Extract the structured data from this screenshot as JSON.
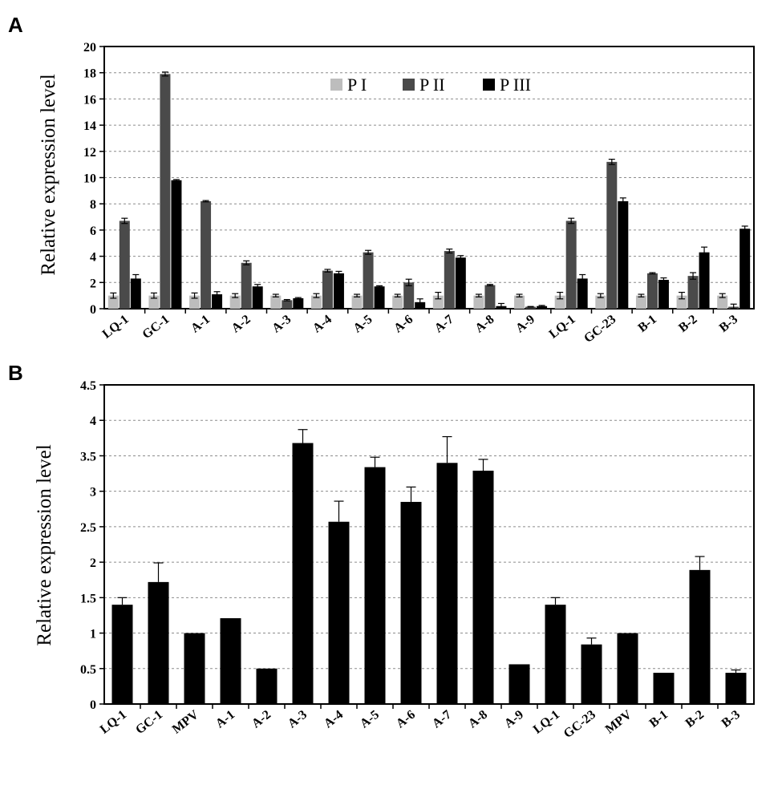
{
  "panels": {
    "a": {
      "letter": "A"
    },
    "b": {
      "letter": "B"
    }
  },
  "chart_data": [
    {
      "type": "bar",
      "panel": "A",
      "ylabel": "Relative expression level",
      "xlabel": "",
      "ylim": [
        0,
        20
      ],
      "yticks": [
        "0",
        "2",
        "4",
        "6",
        "8",
        "10",
        "12",
        "14",
        "16",
        "18",
        "20"
      ],
      "grid": "horizontal dashed",
      "legend_position": "top-center",
      "categories": [
        "LQ-1",
        "GC-1",
        "A-1",
        "A-2",
        "A-3",
        "A-4",
        "A-5",
        "A-6",
        "A-7",
        "A-8",
        "A-9",
        "LQ-1",
        "GC-23",
        "B-1",
        "B-2",
        "B-3"
      ],
      "series": [
        {
          "name": "P I",
          "color": "#bdbdbd",
          "values": [
            1,
            1,
            1,
            1,
            1,
            1,
            1,
            1,
            1,
            1,
            1,
            1,
            1,
            1,
            1,
            1
          ],
          "errors": [
            0.2,
            0.2,
            0.2,
            0.15,
            0.1,
            0.15,
            0.1,
            0.1,
            0.25,
            0.1,
            0.1,
            0.25,
            0.15,
            0.1,
            0.25,
            0.15
          ]
        },
        {
          "name": "P II",
          "color": "#4a4a4a",
          "values": [
            6.7,
            17.9,
            8.2,
            3.5,
            0.65,
            2.9,
            4.3,
            2.0,
            4.4,
            1.8,
            0.15,
            6.7,
            11.2,
            2.7,
            2.5,
            0.15
          ],
          "errors": [
            0.2,
            0.15,
            0.05,
            0.15,
            0.05,
            0.1,
            0.15,
            0.25,
            0.15,
            0.05,
            0.02,
            0.2,
            0.2,
            0.05,
            0.25,
            0.2
          ]
        },
        {
          "name": "P III",
          "color": "#000000",
          "values": [
            2.3,
            9.8,
            1.1,
            1.7,
            0.8,
            2.7,
            1.7,
            0.5,
            3.9,
            0.2,
            0.2,
            2.3,
            8.2,
            2.2,
            4.3,
            6.1
          ],
          "errors": [
            0.3,
            0.05,
            0.2,
            0.15,
            0.05,
            0.15,
            0.05,
            0.25,
            0.15,
            0.2,
            0.05,
            0.3,
            0.25,
            0.15,
            0.4,
            0.2
          ]
        }
      ]
    },
    {
      "type": "bar",
      "panel": "B",
      "ylabel": "Relative expression level",
      "xlabel": "",
      "ylim": [
        0,
        4.5
      ],
      "yticks": [
        "0",
        "0.5",
        "1",
        "1.5",
        "2",
        "2.5",
        "3",
        "3.5",
        "4",
        "4.5"
      ],
      "grid": "horizontal dashed",
      "categories": [
        "LQ-1",
        "GC-1",
        "MPV",
        "A-1",
        "A-2",
        "A-3",
        "A-4",
        "A-5",
        "A-6",
        "A-7",
        "A-8",
        "A-9",
        "LQ-1",
        "GC-23",
        "MPV",
        "B-1",
        "B-2",
        "B-3"
      ],
      "series": [
        {
          "color": "#000000",
          "values": [
            1.4,
            1.72,
            1.0,
            1.21,
            0.5,
            3.68,
            2.57,
            3.34,
            2.85,
            3.4,
            3.29,
            0.56,
            1.4,
            0.84,
            1.0,
            0.44,
            1.89,
            0.44
          ],
          "errors": [
            0.1,
            0.27,
            0.0,
            0.0,
            0.0,
            0.19,
            0.29,
            0.14,
            0.21,
            0.37,
            0.16,
            0.0,
            0.1,
            0.09,
            0.0,
            0.0,
            0.19,
            0.04
          ]
        }
      ]
    }
  ]
}
